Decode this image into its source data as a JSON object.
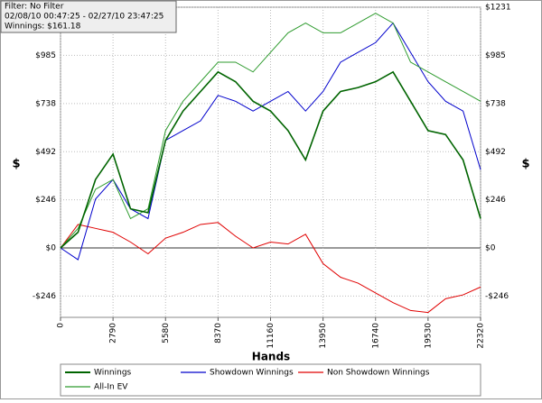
{
  "chart_data": {
    "type": "line",
    "annotations": [
      "Filter: No Filter",
      "02/08/10 00:47:25 - 02/27/10 23:47:25",
      "Winnings: $161.18"
    ],
    "x_label": "Hands",
    "y_label": "$",
    "x": [
      0,
      930,
      1860,
      2790,
      3720,
      4650,
      5580,
      6510,
      7440,
      8370,
      9300,
      10230,
      11160,
      12090,
      13020,
      13950,
      14880,
      15810,
      16740,
      17670,
      18600,
      19530,
      20460,
      21390,
      22320
    ],
    "series": [
      {
        "name": "Winnings",
        "color": "#006400",
        "values": [
          0,
          80,
          350,
          480,
          200,
          180,
          550,
          700,
          800,
          900,
          850,
          750,
          700,
          600,
          450,
          700,
          800,
          820,
          850,
          900,
          750,
          600,
          580,
          450,
          150
        ]
      },
      {
        "name": "Showdown Winnings",
        "color": "#0000cc",
        "values": [
          0,
          -60,
          250,
          350,
          200,
          150,
          550,
          600,
          650,
          780,
          750,
          700,
          750,
          800,
          700,
          800,
          950,
          1000,
          1050,
          1150,
          1000,
          850,
          750,
          700,
          400
        ]
      },
      {
        "name": "Non Showdown Winnings",
        "color": "#e00000",
        "values": [
          0,
          120,
          100,
          80,
          30,
          -30,
          50,
          80,
          120,
          130,
          60,
          0,
          30,
          20,
          70,
          -80,
          -150,
          -180,
          -230,
          -280,
          -320,
          -330,
          -260,
          -240,
          -200
        ]
      },
      {
        "name": "All-In EV",
        "color": "#2e9b2e",
        "values": [
          0,
          100,
          300,
          350,
          150,
          200,
          600,
          750,
          850,
          950,
          950,
          900,
          1000,
          1100,
          1150,
          1100,
          1100,
          1150,
          1200,
          1150,
          950,
          900,
          850,
          800,
          750
        ]
      }
    ],
    "xlim": [
      0,
      22320
    ],
    "xticks": [
      0,
      2790,
      5580,
      8370,
      11160,
      13950,
      16740,
      19530,
      22320
    ],
    "ylim": [
      -355,
      1231
    ],
    "yticks": [
      {
        "value": -246,
        "label": "-$246"
      },
      {
        "value": 0,
        "label": "$0"
      },
      {
        "value": 246,
        "label": "$246"
      },
      {
        "value": 492,
        "label": "$492"
      },
      {
        "value": 738,
        "label": "$738"
      },
      {
        "value": 985,
        "label": "$985"
      },
      {
        "value": 1231,
        "label": "$1231"
      }
    ],
    "grid": true
  }
}
